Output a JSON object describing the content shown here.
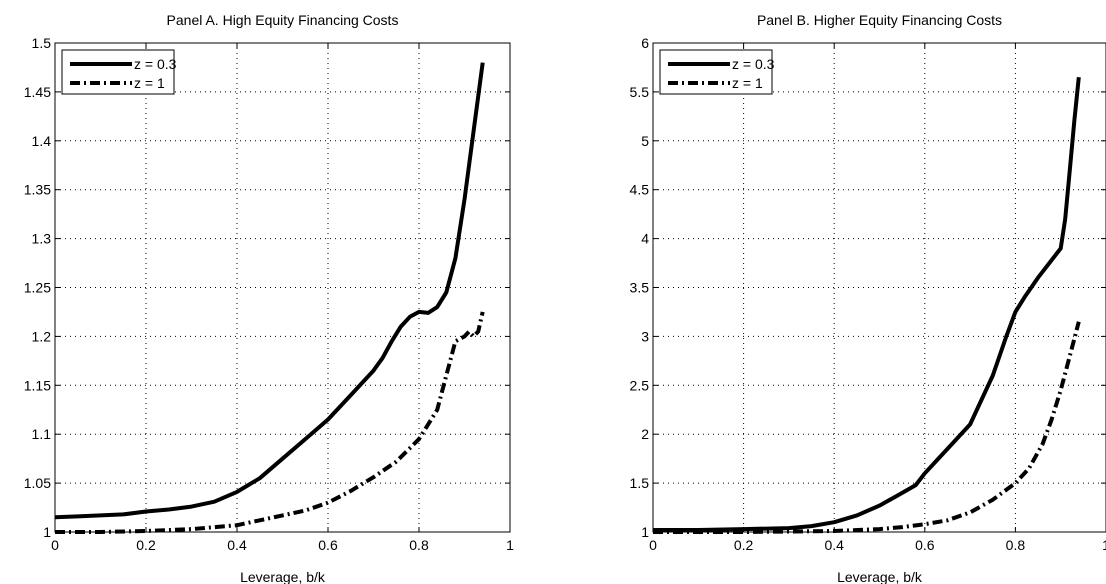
{
  "chart_data": [
    {
      "type": "line",
      "title": "Panel A. High Equity Financing Costs",
      "xlabel": "Leverage, b/k",
      "ylabel": "",
      "xlim": [
        0,
        1
      ],
      "ylim": [
        1,
        1.5
      ],
      "xticks": [
        "0",
        "0.2",
        "0.4",
        "0.6",
        "0.8",
        "1"
      ],
      "yticks": [
        "1",
        "1.05",
        "1.1",
        "1.15",
        "1.2",
        "1.25",
        "1.3",
        "1.35",
        "1.4",
        "1.45",
        "1.5"
      ],
      "grid": true,
      "legend_position": "top-left",
      "series": [
        {
          "name": "z = 0.3",
          "style": "solid",
          "x": [
            0,
            0.05,
            0.1,
            0.15,
            0.2,
            0.25,
            0.3,
            0.35,
            0.4,
            0.45,
            0.5,
            0.55,
            0.6,
            0.65,
            0.7,
            0.72,
            0.74,
            0.76,
            0.78,
            0.8,
            0.82,
            0.84,
            0.86,
            0.88,
            0.9,
            0.92,
            0.94
          ],
          "y": [
            1.015,
            1.016,
            1.017,
            1.018,
            1.021,
            1.023,
            1.026,
            1.031,
            1.041,
            1.055,
            1.075,
            1.095,
            1.115,
            1.14,
            1.165,
            1.178,
            1.195,
            1.21,
            1.22,
            1.225,
            1.224,
            1.23,
            1.245,
            1.28,
            1.34,
            1.41,
            1.48
          ]
        },
        {
          "name": "z = 1",
          "style": "dashdot",
          "x": [
            0,
            0.1,
            0.2,
            0.3,
            0.4,
            0.45,
            0.5,
            0.55,
            0.6,
            0.65,
            0.7,
            0.75,
            0.8,
            0.84,
            0.86,
            0.88,
            0.9,
            0.91,
            0.92,
            0.93,
            0.94
          ],
          "y": [
            1.0,
            1.0,
            1.001,
            1.003,
            1.007,
            1.012,
            1.017,
            1.022,
            1.03,
            1.042,
            1.056,
            1.072,
            1.095,
            1.125,
            1.16,
            1.195,
            1.2,
            1.205,
            1.2,
            1.205,
            1.225
          ]
        }
      ]
    },
    {
      "type": "line",
      "title": "Panel B. Higher Equity Financing Costs",
      "xlabel": "Leverage, b/k",
      "ylabel": "",
      "xlim": [
        0,
        1
      ],
      "ylim": [
        1,
        6
      ],
      "xticks": [
        "0",
        "0.2",
        "0.4",
        "0.6",
        "0.8",
        "1"
      ],
      "yticks": [
        "1",
        "1.5",
        "2",
        "2.5",
        "3",
        "3.5",
        "4",
        "4.5",
        "5",
        "5.5",
        "6"
      ],
      "grid": true,
      "legend_position": "top-left",
      "series": [
        {
          "name": "z = 0.3",
          "style": "solid",
          "x": [
            0,
            0.1,
            0.2,
            0.3,
            0.35,
            0.4,
            0.45,
            0.5,
            0.55,
            0.58,
            0.6,
            0.63,
            0.66,
            0.7,
            0.75,
            0.78,
            0.8,
            0.82,
            0.85,
            0.9,
            0.91,
            0.92,
            0.93,
            0.94
          ],
          "y": [
            1.02,
            1.02,
            1.03,
            1.04,
            1.06,
            1.1,
            1.17,
            1.27,
            1.4,
            1.48,
            1.6,
            1.75,
            1.9,
            2.1,
            2.6,
            3.0,
            3.25,
            3.4,
            3.6,
            3.9,
            4.2,
            4.7,
            5.2,
            5.65
          ]
        },
        {
          "name": "z = 1",
          "style": "dashdot",
          "x": [
            0,
            0.2,
            0.4,
            0.5,
            0.55,
            0.6,
            0.65,
            0.7,
            0.75,
            0.8,
            0.83,
            0.86,
            0.88,
            0.9,
            0.92,
            0.94
          ],
          "y": [
            1.0,
            1.0,
            1.01,
            1.03,
            1.05,
            1.08,
            1.12,
            1.2,
            1.33,
            1.5,
            1.65,
            1.9,
            2.15,
            2.45,
            2.8,
            3.15
          ]
        }
      ]
    }
  ]
}
